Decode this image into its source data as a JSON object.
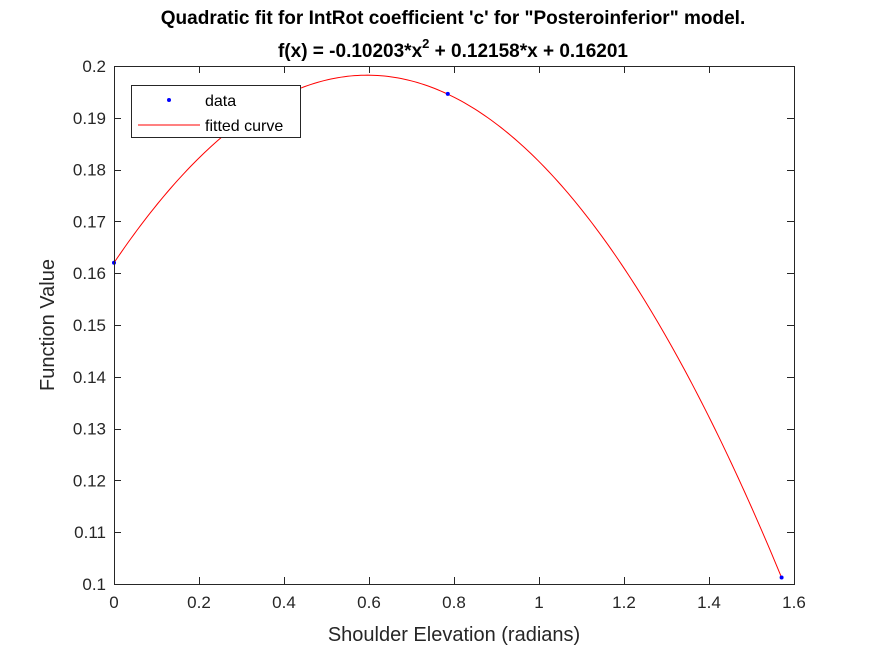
{
  "chart_data": {
    "type": "line",
    "title_line1": "Quadratic fit for IntRot coefficient 'c' for \"Posteroinferior\" model.",
    "title_line2": {
      "prefix": "f(x) = -0.10203*x",
      "exponent": "2",
      "suffix": " + 0.12158*x + 0.16201"
    },
    "xlabel": "Shoulder Elevation (radians)",
    "ylabel": "Function Value",
    "xlim": [
      0,
      1.6
    ],
    "ylim": [
      0.1,
      0.2
    ],
    "xticks": [
      "0",
      "0.2",
      "0.4",
      "0.6",
      "0.8",
      "1",
      "1.2",
      "1.4",
      "1.6"
    ],
    "yticks": [
      "0.1",
      "0.11",
      "0.12",
      "0.13",
      "0.14",
      "0.15",
      "0.16",
      "0.17",
      "0.18",
      "0.19",
      "0.2"
    ],
    "grid": false,
    "legend_position": "top-left",
    "series": [
      {
        "name": "data",
        "kind": "points",
        "color": "#0000ff",
        "x": [
          0,
          0.7854,
          1.5708
        ],
        "y": [
          0.16201,
          0.19463,
          0.10126
        ]
      },
      {
        "name": "fitted curve",
        "kind": "curve",
        "color": "#ff0000",
        "coefficients": [
          -0.10203,
          0.12158,
          0.16201
        ]
      }
    ]
  }
}
